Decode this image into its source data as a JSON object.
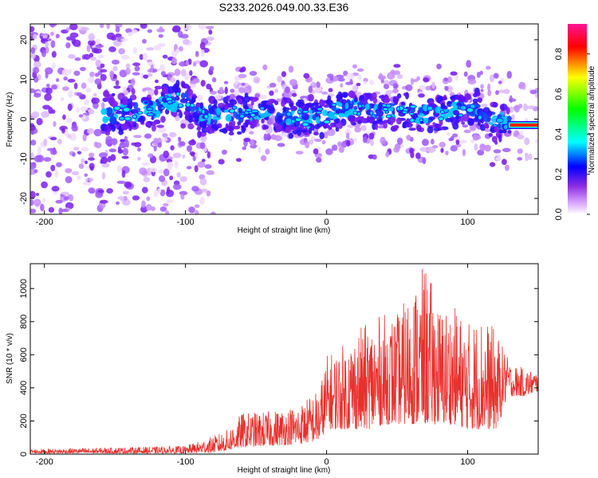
{
  "title": "S233.2026.049.00.33.E36",
  "chart_data": [
    {
      "type": "heatmap",
      "xlabel": "Height of straight line (km)",
      "ylabel": "Frequency (Hz)",
      "xlim": [
        -210,
        150
      ],
      "ylim": [
        -24,
        24
      ],
      "xticks": [
        -200,
        -100,
        0,
        100
      ],
      "yticks": [
        -20,
        -10,
        0,
        10,
        20
      ],
      "colorbar": {
        "label": "Normalized spectral amplitude",
        "range": [
          0,
          0.95
        ],
        "ticks": [
          0.0,
          0.2,
          0.4,
          0.6,
          0.8
        ],
        "colors": [
          "#ffffff",
          "#d9a6ff",
          "#8a2be2",
          "#0000ff",
          "#00ffff",
          "#00ff00",
          "#ffff00",
          "#ff0000",
          "#ff1493"
        ]
      },
      "centerline": {
        "x": [
          -155,
          -130,
          -110,
          -100,
          -90,
          -70,
          -50,
          -30,
          -10,
          0,
          15,
          30,
          50,
          70,
          90,
          105,
          120,
          150
        ],
        "freq": [
          1,
          2,
          4,
          5,
          1,
          1,
          2,
          1,
          0,
          1,
          3,
          2,
          2,
          1,
          2,
          3,
          0,
          -1.5
        ]
      }
    },
    {
      "type": "line",
      "xlabel": "Height of straight line (km)",
      "ylabel": "SNR (10 * v/v)",
      "xlim": [
        -210,
        150
      ],
      "ylim": [
        0,
        1150
      ],
      "xticks": [
        -200,
        -100,
        0,
        100
      ],
      "yticks": [
        0,
        200,
        400,
        600,
        800,
        1000
      ],
      "color": "#e8302c",
      "envelope": {
        "x": [
          -210,
          -150,
          -100,
          -80,
          -70,
          -60,
          -40,
          -20,
          -5,
          0,
          10,
          20,
          30,
          40,
          50,
          60,
          70,
          80,
          90,
          100,
          110,
          120,
          130,
          140,
          150
        ],
        "peak": [
          30,
          40,
          50,
          110,
          150,
          250,
          260,
          300,
          400,
          600,
          650,
          750,
          800,
          850,
          850,
          1000,
          1150,
          900,
          900,
          800,
          850,
          750,
          550,
          520,
          500
        ],
        "base": [
          5,
          5,
          5,
          10,
          20,
          40,
          50,
          60,
          80,
          150,
          150,
          150,
          150,
          180,
          180,
          180,
          180,
          180,
          180,
          150,
          150,
          150,
          350,
          350,
          380
        ]
      }
    }
  ]
}
